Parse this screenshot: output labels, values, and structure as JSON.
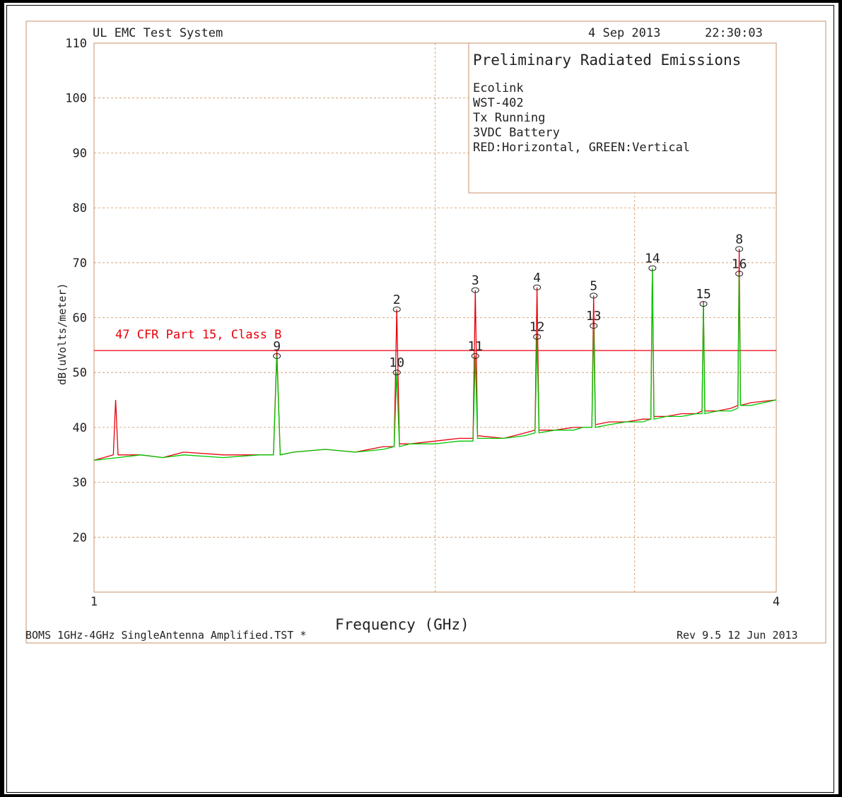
{
  "header": {
    "system": "UL EMC Test System",
    "date": "4 Sep 2013",
    "time": "22:30:03"
  },
  "info_box": {
    "title": "Preliminary Radiated Emissions",
    "lines": [
      "Ecolink",
      "WST-402",
      "Tx Running",
      "3VDC Battery",
      "RED:Horizontal, GREEN:Vertical"
    ]
  },
  "footer": {
    "file": "BOMS 1GHz-4GHz SingleAntenna Amplified.TST *",
    "revision": "Rev 9.5 12 Jun 2013"
  },
  "colors": {
    "horizontal": "#e8000b",
    "vertical": "#00c800",
    "grid": "#d0905a",
    "limit": "#e8000b",
    "text": "#222222"
  },
  "chart_data": {
    "type": "line",
    "xlabel": "Frequency (GHz)",
    "ylabel": "dB(uVolts/meter)",
    "xscale": "log",
    "xlim": [
      1,
      4
    ],
    "ylim": [
      10,
      110
    ],
    "x_tick_labels": [
      "1",
      "4"
    ],
    "y_ticks": [
      20,
      30,
      40,
      50,
      60,
      70,
      80,
      90,
      100,
      110
    ],
    "grid": true,
    "limit_line": {
      "label": "47 CFR Part 15, Class B",
      "value": 54
    },
    "series": [
      {
        "name": "Horizontal",
        "color": "#e8000b",
        "x": [
          1.0,
          1.02,
          1.04,
          1.045,
          1.05,
          1.1,
          1.15,
          1.2,
          1.3,
          1.4,
          1.44,
          1.45,
          1.46,
          1.5,
          1.6,
          1.7,
          1.8,
          1.84,
          1.85,
          1.86,
          1.9,
          2.0,
          2.1,
          2.16,
          2.17,
          2.18,
          2.3,
          2.4,
          2.45,
          2.46,
          2.47,
          2.55,
          2.65,
          2.7,
          2.75,
          2.76,
          2.77,
          2.85,
          2.95,
          3.05,
          3.1,
          3.11,
          3.12,
          3.2,
          3.3,
          3.4,
          3.44,
          3.45,
          3.46,
          3.55,
          3.65,
          3.7,
          3.71,
          3.72,
          3.8,
          4.0
        ],
        "y": [
          34,
          34.5,
          35,
          45,
          35,
          35,
          34.5,
          35.5,
          35,
          35,
          35,
          54,
          35,
          35.5,
          36,
          35.5,
          36.5,
          36.5,
          61.5,
          37,
          37,
          37.5,
          38,
          38,
          65,
          38.5,
          38,
          39,
          39.5,
          65.5,
          39.5,
          39.5,
          40,
          40,
          40,
          64,
          40.5,
          41,
          41,
          41.5,
          41.5,
          69,
          42,
          42,
          42.5,
          42.5,
          43,
          63,
          43,
          43,
          43.5,
          44,
          72.5,
          44,
          44.5,
          45
        ]
      },
      {
        "name": "Vertical",
        "color": "#00c800",
        "x": [
          1.0,
          1.05,
          1.1,
          1.15,
          1.2,
          1.3,
          1.4,
          1.44,
          1.45,
          1.46,
          1.5,
          1.6,
          1.7,
          1.8,
          1.84,
          1.85,
          1.86,
          1.9,
          2.0,
          2.1,
          2.16,
          2.17,
          2.18,
          2.3,
          2.4,
          2.45,
          2.46,
          2.47,
          2.55,
          2.65,
          2.7,
          2.75,
          2.76,
          2.77,
          2.85,
          2.95,
          3.05,
          3.1,
          3.11,
          3.12,
          3.2,
          3.3,
          3.4,
          3.44,
          3.45,
          3.46,
          3.55,
          3.65,
          3.7,
          3.71,
          3.72,
          3.8,
          4.0
        ],
        "y": [
          34,
          34.5,
          35,
          34.5,
          35,
          34.5,
          35,
          35,
          53,
          35,
          35.5,
          36,
          35.5,
          36,
          36.5,
          50,
          36.5,
          37,
          37,
          37.5,
          37.5,
          53,
          38,
          38,
          38.5,
          39,
          56.5,
          39,
          39.5,
          39.5,
          40,
          40,
          58.5,
          40,
          40.5,
          41,
          41,
          41.5,
          69,
          41.5,
          42,
          42,
          42.5,
          42.5,
          62.5,
          42.5,
          43,
          43,
          43.5,
          68,
          44,
          44,
          45
        ]
      }
    ],
    "markers": [
      {
        "label": "9",
        "x": 1.45,
        "y": 53
      },
      {
        "label": "2",
        "x": 1.85,
        "y": 61.5
      },
      {
        "label": "10",
        "x": 1.85,
        "y": 50
      },
      {
        "label": "3",
        "x": 2.17,
        "y": 65
      },
      {
        "label": "11",
        "x": 2.17,
        "y": 53
      },
      {
        "label": "4",
        "x": 2.46,
        "y": 65.5
      },
      {
        "label": "12",
        "x": 2.46,
        "y": 56.5
      },
      {
        "label": "5",
        "x": 2.76,
        "y": 64
      },
      {
        "label": "13",
        "x": 2.76,
        "y": 58.5
      },
      {
        "label": "14",
        "x": 3.11,
        "y": 69
      },
      {
        "label": "15",
        "x": 3.45,
        "y": 62.5
      },
      {
        "label": "8",
        "x": 3.71,
        "y": 72.5
      },
      {
        "label": "16",
        "x": 3.71,
        "y": 68
      }
    ]
  }
}
